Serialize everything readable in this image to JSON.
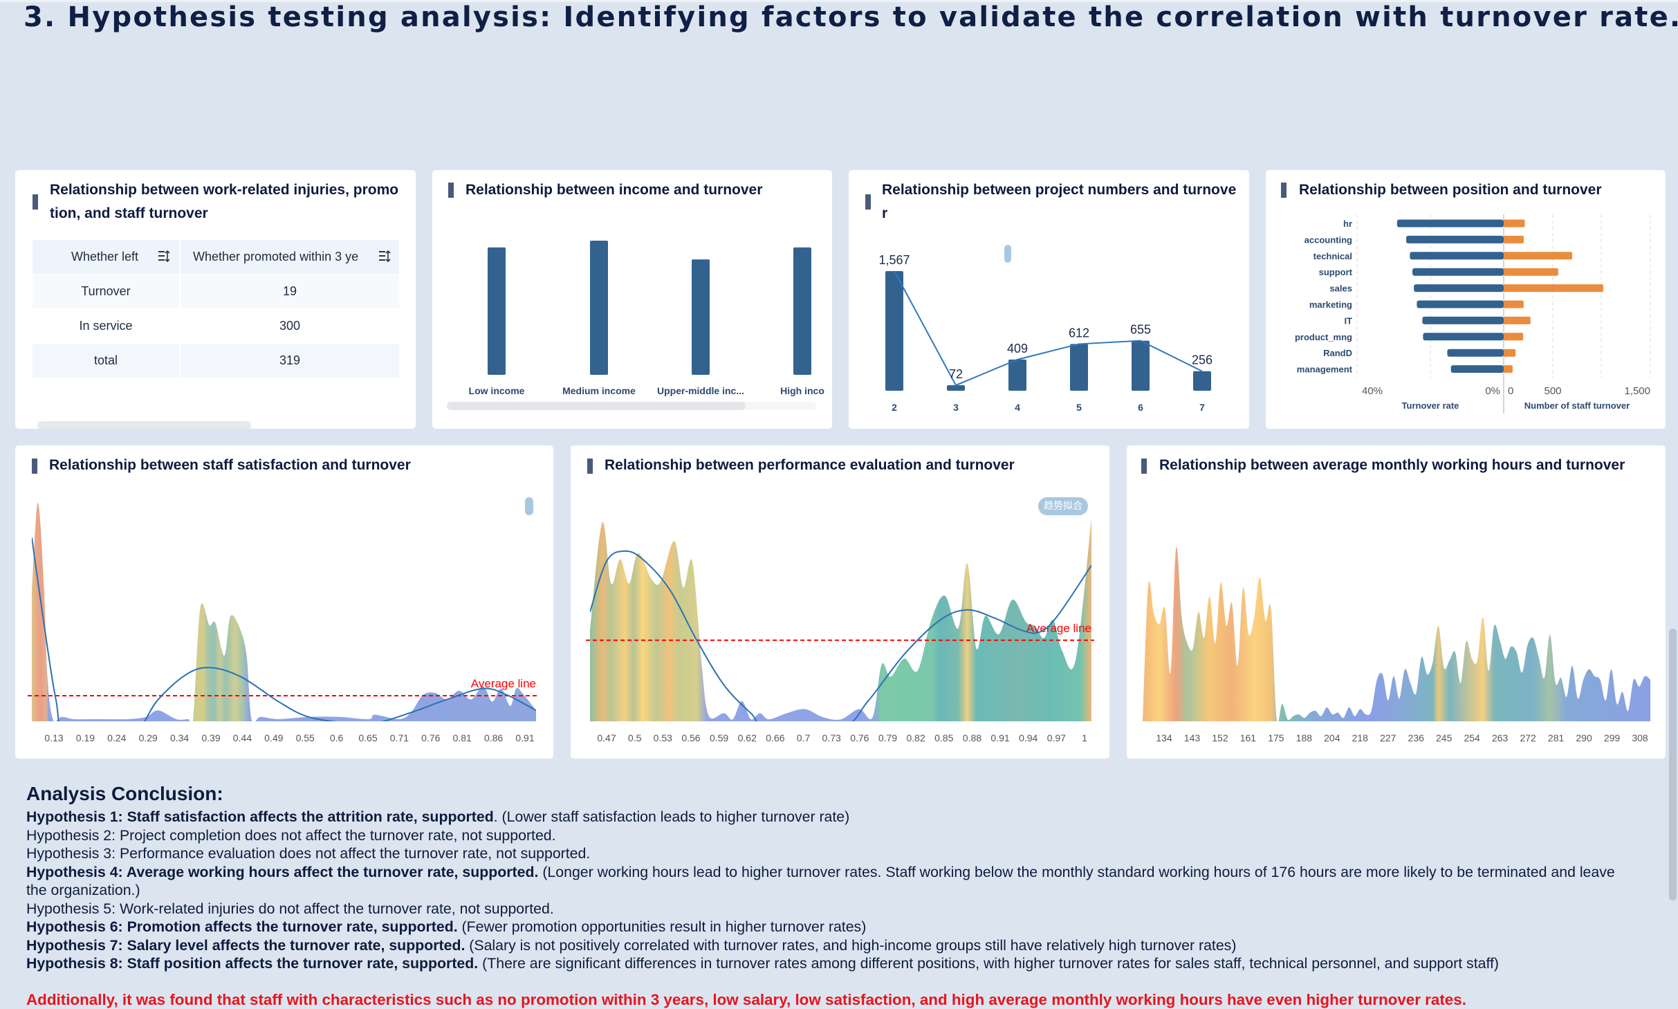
{
  "page_title": "3. Hypothesis testing analysis: Identifying factors to validate the correlation with turnover rate.",
  "injury_table": {
    "title": "Relationship between work-related injuries, promotion, and staff turnover",
    "headers": [
      "Whether left",
      "Whether promoted within 3 ye"
    ],
    "header_icon": "sort-icon",
    "rows": [
      [
        "Turnover",
        "19"
      ],
      [
        "In service",
        "300"
      ],
      [
        "total",
        "319"
      ]
    ]
  },
  "chart_data": [
    {
      "type": "bar",
      "title": "Relationship between income and turnover",
      "categories": [
        "Low income",
        "Medium income",
        "Upper-middle inc...",
        "High inco"
      ],
      "values": [
        0.95,
        1.0,
        0.86,
        0.95
      ],
      "bar_color": "#33628f"
    },
    {
      "type": "bar",
      "title": "Relationship between project numbers and turnover",
      "categories": [
        "2",
        "3",
        "4",
        "5",
        "6",
        "7"
      ],
      "values": [
        1567,
        72,
        409,
        612,
        655,
        256
      ],
      "value_labels": [
        "1,567",
        "72",
        "409",
        "612",
        "655",
        "256"
      ],
      "overlay": "line",
      "bar_color": "#33628f",
      "line_color": "#2e78bd"
    },
    {
      "type": "bar",
      "orientation": "horizontal-diverging",
      "title": "Relationship between position and turnover",
      "categories": [
        "hr",
        "accounting",
        "technical",
        "support",
        "sales",
        "marketing",
        "IT",
        "product_mng",
        "RandD",
        "management"
      ],
      "series": [
        {
          "name": "Turnover rate",
          "unit": "%",
          "values": [
            29.1,
            26.6,
            25.6,
            24.9,
            24.5,
            23.7,
            22.2,
            22.0,
            15.4,
            14.4
          ],
          "color": "#33628f",
          "xlim": [
            0,
            40
          ],
          "tick_labels": [
            "40%",
            "0%"
          ]
        },
        {
          "name": "Number of staff turnover",
          "values": [
            215,
            204,
            697,
            555,
            1014,
            203,
            273,
            198,
            121,
            91
          ],
          "color": "#ea8c3d",
          "xlim": [
            0,
            1500
          ],
          "tick_labels": [
            "0",
            "500",
            "1,500"
          ]
        }
      ],
      "grid": true
    },
    {
      "type": "area",
      "title": "Relationship between staff satisfaction and turnover",
      "x_tick_labels": [
        "0.13",
        "0.19",
        "0.24",
        "0.29",
        "0.34",
        "0.39",
        "0.44",
        "0.49",
        "0.55",
        "0.6",
        "0.65",
        "0.71",
        "0.76",
        "0.81",
        "0.86",
        "0.91"
      ],
      "xlim": [
        0.09,
        0.928
      ],
      "x": [
        0.09,
        0.1,
        0.11,
        0.116,
        0.125,
        0.14,
        0.16,
        0.2,
        0.25,
        0.28,
        0.3,
        0.33,
        0.35,
        0.358,
        0.37,
        0.385,
        0.395,
        0.41,
        0.42,
        0.435,
        0.447,
        0.455,
        0.47,
        0.5,
        0.55,
        0.6,
        0.65,
        0.66,
        0.7,
        0.72,
        0.74,
        0.76,
        0.78,
        0.8,
        0.82,
        0.84,
        0.855,
        0.87,
        0.885,
        0.895,
        0.905,
        0.928
      ],
      "y": [
        60,
        100,
        62,
        20,
        1,
        2,
        1,
        1,
        1,
        2,
        5,
        1,
        1,
        1,
        52,
        44,
        45,
        30,
        48,
        43,
        30,
        1,
        2,
        1,
        2,
        2,
        1,
        3,
        1,
        4,
        12,
        13,
        10,
        14,
        10,
        16,
        9,
        15,
        7,
        15,
        13,
        5
      ],
      "trend": {
        "x": [
          0.09,
          0.11,
          0.13,
          0.15,
          0.25,
          0.3,
          0.35,
          0.39,
          0.44,
          0.5,
          0.55,
          0.62,
          0.66,
          0.72,
          0.78,
          0.84,
          0.88,
          0.928
        ],
        "y": [
          84,
          45,
          10,
          -8,
          -8,
          10,
          22,
          24.5,
          20,
          9,
          2,
          -1,
          -1,
          4,
          10,
          15,
          12,
          5
        ]
      },
      "average_line": {
        "label": "Average line",
        "value": 11.7,
        "color": "#ff0000"
      },
      "color_bands": [
        [
          0.09,
          "#d9c784"
        ],
        [
          0.097,
          "#eaa98a"
        ],
        [
          0.105,
          "#e99f85"
        ],
        [
          0.114,
          "#e5b08e"
        ],
        [
          0.118,
          "#8fa3e6"
        ],
        [
          0.352,
          "#8fa3e6"
        ],
        [
          0.36,
          "#c9cf8e"
        ],
        [
          0.375,
          "#d6cc8c"
        ],
        [
          0.382,
          "#a9c6a8"
        ],
        [
          0.393,
          "#95c2b5"
        ],
        [
          0.402,
          "#c8cc96"
        ],
        [
          0.412,
          "#9cc2b0"
        ],
        [
          0.428,
          "#d0ce92"
        ],
        [
          0.44,
          "#a6c5ab"
        ],
        [
          0.452,
          "#8fa3e6"
        ],
        [
          0.928,
          "#8fa6df"
        ]
      ],
      "trend_button_color": "#a8c8e0"
    },
    {
      "type": "area",
      "title": "Relationship between performance evaluation and turnover",
      "x_tick_labels": [
        "0.47",
        "0.5",
        "0.53",
        "0.56",
        "0.59",
        "0.62",
        "0.66",
        "0.7",
        "0.73",
        "0.76",
        "0.79",
        "0.82",
        "0.85",
        "0.88",
        "0.91",
        "0.94",
        "0.97",
        "1"
      ],
      "xlim": [
        0.4516,
        1.0077
      ],
      "x": [
        0.4516,
        0.465,
        0.475,
        0.485,
        0.495,
        0.505,
        0.52,
        0.53,
        0.545,
        0.555,
        0.565,
        0.575,
        0.583,
        0.6,
        0.61,
        0.62,
        0.63,
        0.64,
        0.65,
        0.67,
        0.69,
        0.71,
        0.73,
        0.75,
        0.765,
        0.775,
        0.785,
        0.8,
        0.815,
        0.83,
        0.845,
        0.86,
        0.87,
        0.88,
        0.89,
        0.905,
        0.92,
        0.935,
        0.945,
        0.955,
        0.965,
        0.975,
        0.99,
        1.0077
      ],
      "y": [
        45,
        98,
        68,
        80,
        68,
        83,
        70,
        69,
        89,
        66,
        79,
        30,
        3,
        4,
        1,
        10,
        1,
        4,
        1,
        4,
        6,
        2,
        1,
        6,
        2,
        28,
        22,
        31,
        25,
        50,
        62,
        46,
        78,
        36,
        52,
        43,
        60,
        49,
        47,
        41,
        50,
        35,
        30,
        100
      ],
      "trend": {
        "x": [
          0.4516,
          0.47,
          0.49,
          0.51,
          0.54,
          0.57,
          0.6,
          0.63,
          0.65,
          0.73,
          0.76,
          0.8,
          0.84,
          0.87,
          0.9,
          0.93,
          0.95,
          0.97,
          1.0077
        ],
        "y": [
          54,
          79,
          84,
          80,
          65,
          40,
          18,
          4,
          -3,
          -3,
          10,
          33,
          50,
          55,
          51,
          45,
          44,
          52,
          77
        ]
      },
      "average_line": {
        "label": "Average line",
        "value": 40,
        "color": "#ff0000"
      },
      "trend_button": "趋势拟合",
      "trend_button_color": "#a8c8e0",
      "color_bands": [
        [
          0.4516,
          "#8cc1a0"
        ],
        [
          0.465,
          "#ebb97a"
        ],
        [
          0.475,
          "#b8c694"
        ],
        [
          0.49,
          "#f6d080"
        ],
        [
          0.5,
          "#b6c596"
        ],
        [
          0.51,
          "#fbd680"
        ],
        [
          0.525,
          "#c1c893"
        ],
        [
          0.54,
          "#f0c37c"
        ],
        [
          0.55,
          "#c9cc8f"
        ],
        [
          0.57,
          "#d6ce8e"
        ],
        [
          0.582,
          "#8fa3e6"
        ],
        [
          0.765,
          "#8fa3e6"
        ],
        [
          0.775,
          "#7ccaa8"
        ],
        [
          0.83,
          "#7cc8ac"
        ],
        [
          0.84,
          "#6ab7b8"
        ],
        [
          0.86,
          "#7cbcae"
        ],
        [
          0.87,
          "#efcf84"
        ],
        [
          0.88,
          "#6bbab6"
        ],
        [
          0.93,
          "#79b9b0"
        ],
        [
          0.96,
          "#6bbcb5"
        ],
        [
          0.995,
          "#73c3ae"
        ],
        [
          1.0077,
          "#efb77a"
        ]
      ]
    },
    {
      "type": "area",
      "title": "Relationship between average monthly working hours and turnover",
      "x_tick_labels": [
        "134",
        "143",
        "152",
        "161",
        "175",
        "188",
        "204",
        "218",
        "227",
        "236",
        "245",
        "254",
        "263",
        "272",
        "281",
        "290",
        "299",
        "308"
      ],
      "y": [
        0,
        78,
        62,
        56,
        65,
        28,
        100,
        60,
        45,
        42,
        63,
        48,
        72,
        45,
        80,
        55,
        68,
        32,
        77,
        50,
        60,
        83,
        58,
        65,
        2,
        10,
        1,
        3,
        4,
        2,
        5,
        6,
        3,
        8,
        4,
        5,
        2,
        8,
        3,
        7,
        4,
        6,
        24,
        27,
        12,
        26,
        13,
        30,
        22,
        16,
        37,
        27,
        34,
        55,
        31,
        35,
        40,
        22,
        46,
        36,
        35,
        60,
        29,
        55,
        47,
        36,
        43,
        40,
        28,
        44,
        48,
        37,
        25,
        50,
        22,
        25,
        14,
        32,
        13,
        24,
        30,
        26,
        24,
        12,
        30,
        10,
        17,
        6,
        24,
        20,
        26,
        24
      ],
      "color_bands": [
        [
          0,
          "#f3b779"
        ],
        [
          3,
          "#fbd27f"
        ],
        [
          6,
          "#eea37f"
        ],
        [
          8,
          "#a9c59c"
        ],
        [
          12,
          "#f7c879"
        ],
        [
          16,
          "#f2b37b"
        ],
        [
          20,
          "#fbd27f"
        ],
        [
          23,
          "#f3c47a"
        ],
        [
          25,
          "#7fbcb3"
        ],
        [
          31,
          "#86a9d8"
        ],
        [
          41,
          "#8b9fe6"
        ],
        [
          47,
          "#86aad6"
        ],
        [
          52,
          "#7cb5c0"
        ],
        [
          53,
          "#e8c97f"
        ],
        [
          55,
          "#7cb5c0"
        ],
        [
          61,
          "#f6cf7f"
        ],
        [
          63,
          "#7cb7bc"
        ],
        [
          70,
          "#7db2c7"
        ],
        [
          73,
          "#a6c3a8"
        ],
        [
          76,
          "#85aad7"
        ],
        [
          91,
          "#8ba0e4"
        ]
      ]
    }
  ],
  "conclusion": {
    "heading": "Analysis Conclusion:",
    "items": [
      {
        "bold": "Hypothesis 1: Staff satisfaction affects the attrition rate, supported",
        "text": ". (Lower staff satisfaction leads to higher turnover rate)"
      },
      {
        "bold": "",
        "text": "Hypothesis 2: Project completion does not affect the turnover rate, not supported."
      },
      {
        "bold": "",
        "text": "Hypothesis 3: Performance evaluation does not affect the turnover rate, not supported."
      },
      {
        "bold": "Hypothesis 4: Average working hours affect the turnover rate, supported.",
        "text": " (Longer working hours lead to higher turnover rates. Staff working below the monthly standard working hours of 176 hours are more likely to be terminated and leave the organization.)"
      },
      {
        "bold": "",
        "text": "Hypothesis 5: Work-related injuries do not affect the turnover rate, not supported."
      },
      {
        "bold": "Hypothesis 6: Promotion affects the turnover rate, supported.",
        "text": " (Fewer promotion opportunities result in higher turnover rates)"
      },
      {
        "bold": "Hypothesis 7: Salary level affects the turnover rate, supported.",
        "text": " (Salary is not positively correlated with turnover rates, and high-income groups still have relatively high turnover rates)"
      },
      {
        "bold": "Hypothesis 8: Staff position affects the turnover rate, supported.",
        "text": " (There are significant differences in turnover rates among different positions, with higher turnover rates for sales staff, technical personnel, and support staff)"
      }
    ],
    "highlight": "Additionally, it was found that staff with characteristics such as no promotion within 3 years, low salary, low satisfaction, and high average monthly working hours have even higher turnover rates.",
    "highlight_color": "#e8141e"
  }
}
